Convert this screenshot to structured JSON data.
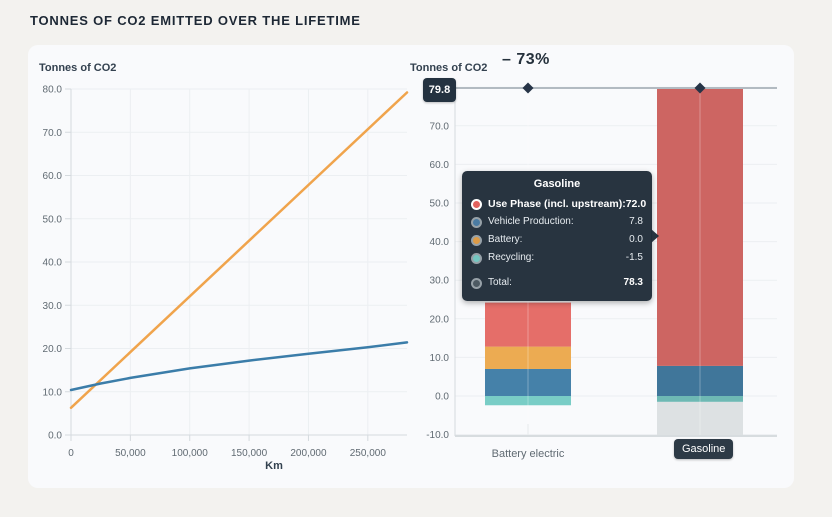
{
  "page": {
    "title": "TONNES OF CO2 EMITTED OVER THE LIFETIME"
  },
  "colors": {
    "page_bg": "#f3f2ef",
    "card_bg": "#f9fafc",
    "grid": "#eceff2",
    "axis": "#d5dade",
    "tick_label": "#606a72",
    "reference_line": "#b2bac1",
    "marker": "#273447",
    "tooltip_bg": "#212d3a",
    "use_phase": "#e56e69",
    "battery": "#ecab52",
    "vehicle_production": "#4581a9",
    "recycling": "#79cdc6",
    "total_gray": "#4d5a63",
    "hover_band": "#dde1e3",
    "line_gasoline": "#f0a44c",
    "line_battery_electric": "#3b7da9"
  },
  "chart_data": [
    {
      "type": "line",
      "title": "Tonnes of CO2",
      "xlabel": "Km",
      "xlim": [
        0,
        283000
      ],
      "ylim": [
        0,
        80
      ],
      "y_tick_step": 10,
      "y_tick_labels": [
        "0.0",
        "10.0",
        "20.0",
        "30.0",
        "40.0",
        "50.0",
        "60.0",
        "70.0",
        "80.0"
      ],
      "x_ticks": [
        {
          "v": 0,
          "label": "0"
        },
        {
          "v": 50000,
          "label": "50,000"
        },
        {
          "v": 100000,
          "label": "100,000"
        },
        {
          "v": 150000,
          "label": "150,000"
        },
        {
          "v": 200000,
          "label": "200,000"
        },
        {
          "v": 250000,
          "label": "250,000"
        }
      ],
      "grid": true,
      "series": [
        {
          "name": "Gasoline",
          "color": "#f0a44c",
          "points": [
            [
              0,
              6.3
            ],
            [
              283000,
              79.2
            ]
          ]
        },
        {
          "name": "Battery electric",
          "color": "#3b7da9",
          "points": [
            [
              0,
              10.4
            ],
            [
              25000,
              11.9
            ],
            [
              50000,
              13.2
            ],
            [
              100000,
              15.4
            ],
            [
              150000,
              17.2
            ],
            [
              200000,
              18.8
            ],
            [
              250000,
              20.3
            ],
            [
              283000,
              21.4
            ]
          ]
        }
      ]
    },
    {
      "type": "stacked-bar",
      "title": "Tonnes of CO2",
      "categories": [
        "Battery electric",
        "Gasoline"
      ],
      "ylim": [
        -10,
        80
      ],
      "y_tick_step": 10,
      "y_tick_labels": [
        "-10.0",
        "0.0",
        "10.0",
        "20.0",
        "30.0",
        "40.0",
        "50.0",
        "60.0",
        "70.0",
        "80.0"
      ],
      "grid": true,
      "series": [
        {
          "name": "Vehicle Production",
          "color": "#4581a9",
          "values": [
            7.0,
            7.8
          ]
        },
        {
          "name": "Battery",
          "color": "#ecab52",
          "values": [
            5.8,
            0.0
          ]
        },
        {
          "name": "Use Phase (incl. upstream)",
          "color": "#e56e69",
          "values": [
            11.4,
            72.0
          ]
        },
        {
          "name": "Recycling",
          "color": "#79cdc6",
          "values": [
            -2.4,
            -1.5
          ]
        }
      ],
      "totals": [
        21.8,
        78.3
      ],
      "reference_line": 79.8,
      "reference_label": "79.8",
      "delta_label": "– 73%",
      "hover_category": "Gasoline",
      "hover_band_color": "#dde1e3"
    }
  ],
  "tooltip": {
    "title": "Gasoline",
    "rows": [
      {
        "label": "Use Phase (incl. upstream):",
        "value": "72.0",
        "color": "#e2625e"
      },
      {
        "label": "Vehicle Production:",
        "value": "7.8",
        "color": "#4a7ba3"
      },
      {
        "label": "Battery:",
        "value": "0.0",
        "color": "#dd9b47"
      },
      {
        "label": "Recycling:",
        "value": "-1.5",
        "color": "#74c7c2"
      },
      {
        "label": "Total:",
        "value": "78.3",
        "color": "#4d5a63"
      }
    ]
  }
}
